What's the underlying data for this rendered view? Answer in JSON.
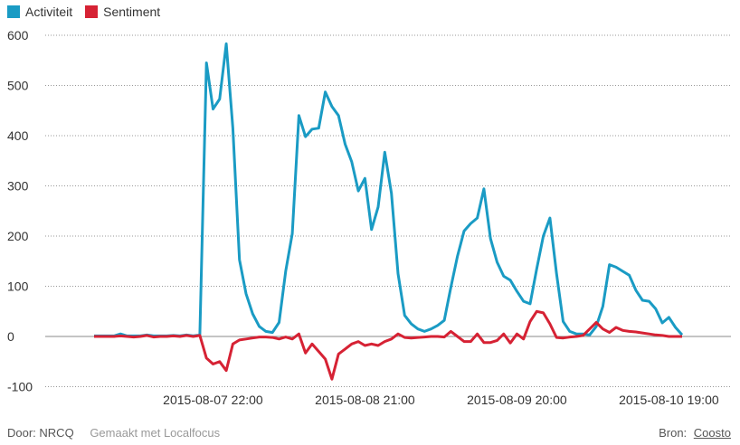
{
  "legend": [
    {
      "name": "Activiteit",
      "color": "#1a9bc4"
    },
    {
      "name": "Sentiment",
      "color": "#d62234"
    }
  ],
  "footer": {
    "source_label": "Door: NRCQ",
    "made_with": "Gemaakt met Localfocus",
    "bron_label": "Bron:",
    "bron_link": "Coosto"
  },
  "chart_data": {
    "type": "line",
    "ylim": [
      -100,
      600
    ],
    "yticks": [
      -100,
      0,
      100,
      200,
      300,
      400,
      500,
      600
    ],
    "xtick_labels": [
      "2015-08-07 22:00",
      "2015-08-08 21:00",
      "2015-08-09 20:00",
      "2015-08-10 19:00"
    ],
    "xtick_index": [
      18,
      41,
      64,
      87
    ],
    "grid": true,
    "series": [
      {
        "name": "Activiteit",
        "color": "#1a9bc4",
        "values": [
          1,
          1,
          1,
          1,
          5,
          1,
          1,
          1,
          3,
          1,
          1,
          1,
          2,
          1,
          3,
          1,
          3,
          545,
          453,
          473,
          583,
          415,
          153,
          85,
          45,
          20,
          10,
          8,
          28,
          130,
          205,
          440,
          398,
          413,
          415,
          487,
          458,
          440,
          383,
          348,
          290,
          315,
          213,
          258,
          367,
          285,
          125,
          42,
          25,
          15,
          10,
          15,
          22,
          32,
          98,
          160,
          210,
          225,
          236,
          294,
          195,
          148,
          120,
          112,
          90,
          70,
          65,
          135,
          200,
          236,
          125,
          30,
          10,
          5,
          5,
          3,
          20,
          60,
          143,
          138,
          130,
          122,
          92,
          72,
          70,
          55,
          27,
          38,
          18,
          3
        ],
        "raw_values": [
          1,
          1,
          1,
          1,
          5,
          1,
          1,
          1,
          3,
          1,
          1,
          1,
          2,
          1,
          3,
          1,
          3,
          545,
          453,
          473,
          583,
          415,
          153,
          85,
          45,
          20,
          10,
          8,
          28,
          130,
          205,
          440,
          398,
          413,
          415,
          487,
          458,
          440,
          383,
          348,
          290,
          315,
          213,
          258,
          367,
          285,
          125,
          42,
          25,
          15,
          10,
          15,
          22,
          32,
          98,
          160,
          210,
          225,
          236,
          294,
          195,
          148,
          120,
          112,
          90,
          70,
          65,
          135,
          200,
          236,
          125,
          30,
          10,
          5,
          5,
          3,
          20,
          60,
          143,
          138,
          130,
          122,
          92,
          72,
          70,
          55,
          27,
          38,
          18,
          3
        ]
      },
      {
        "name": "Sentiment",
        "color": "#d62234",
        "values": [
          0,
          0,
          0,
          0,
          1,
          0,
          -1,
          0,
          2,
          -1,
          0,
          0,
          1,
          0,
          2,
          0,
          2,
          -43,
          -55,
          -50,
          -68,
          -15,
          -7,
          -5,
          -3,
          -1,
          -1,
          -2,
          -5,
          -1,
          -5,
          5,
          -33,
          -15,
          -30,
          -45,
          -85,
          -35,
          -25,
          -15,
          -10,
          -18,
          -15,
          -18,
          -10,
          -5,
          5,
          -2,
          -3,
          -2,
          -1,
          0,
          0,
          -1,
          10,
          0,
          -10,
          -10,
          5,
          -12,
          -12,
          -8,
          5,
          -13,
          5,
          -5,
          30,
          50,
          47,
          25,
          -2,
          -3,
          -1,
          0,
          2,
          15,
          28,
          15,
          8,
          18,
          12,
          10,
          9,
          7,
          5,
          3,
          2,
          0,
          0,
          0
        ],
        "raw_values": [
          0,
          0,
          0,
          0,
          1,
          0,
          -1,
          0,
          2,
          -1,
          0,
          0,
          1,
          0,
          2,
          0,
          2,
          -43,
          -55,
          -50,
          -68,
          -15,
          -7,
          -5,
          -3,
          -1,
          -1,
          -2,
          -5,
          -1,
          -5,
          5,
          -33,
          -15,
          -30,
          -45,
          -85,
          -35,
          -25,
          -15,
          -10,
          -18,
          -15,
          -18,
          -10,
          -5,
          5,
          -2,
          -3,
          -2,
          -1,
          0,
          0,
          -1,
          10,
          0,
          -10,
          -10,
          5,
          -12,
          -12,
          -8,
          5,
          -13,
          5,
          -5,
          30,
          50,
          47,
          25,
          -2,
          -3,
          -1,
          0,
          2,
          15,
          28,
          15,
          8,
          18,
          12,
          10,
          9,
          7,
          5,
          3,
          2,
          0,
          0,
          0
        ]
      }
    ]
  }
}
